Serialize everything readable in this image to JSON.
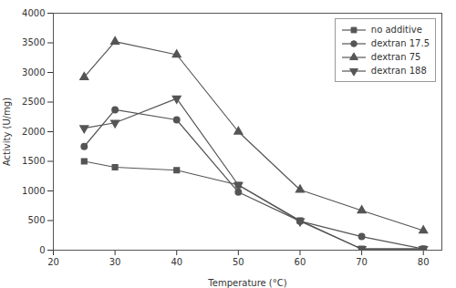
{
  "chart_data": {
    "type": "line",
    "x": [
      25,
      30,
      40,
      50,
      60,
      70,
      80
    ],
    "series": [
      {
        "name": "no additive",
        "values": [
          1500,
          1400,
          1350,
          1100,
          500,
          20,
          20
        ],
        "marker": "square",
        "line_style": "solid",
        "color": "#555555"
      },
      {
        "name": "dextran 17.5",
        "values": [
          1750,
          2370,
          2200,
          980,
          490,
          230,
          20
        ],
        "marker": "circle",
        "line_style": "solid",
        "color": "#555555"
      },
      {
        "name": "dextran 75",
        "values": [
          2920,
          3520,
          3300,
          2000,
          1020,
          670,
          330
        ],
        "marker": "triangle-up",
        "line_style": "solid",
        "color": "#555555"
      },
      {
        "name": "dextran 188",
        "values": [
          2060,
          2150,
          2560,
          1100,
          490,
          20,
          20
        ],
        "marker": "triangle-down",
        "line_style": "solid",
        "color": "#555555"
      }
    ],
    "xlabel": "Temperature (°C)",
    "ylabel": "Activity (U/mg)",
    "xlim": [
      20,
      83
    ],
    "ylim": [
      0,
      4000
    ],
    "xticks": [
      20,
      30,
      40,
      50,
      60,
      70,
      80
    ],
    "yticks": [
      0,
      500,
      1000,
      1500,
      2000,
      2500,
      3000,
      3500,
      4000
    ],
    "legend": "upper right",
    "grid": false
  }
}
